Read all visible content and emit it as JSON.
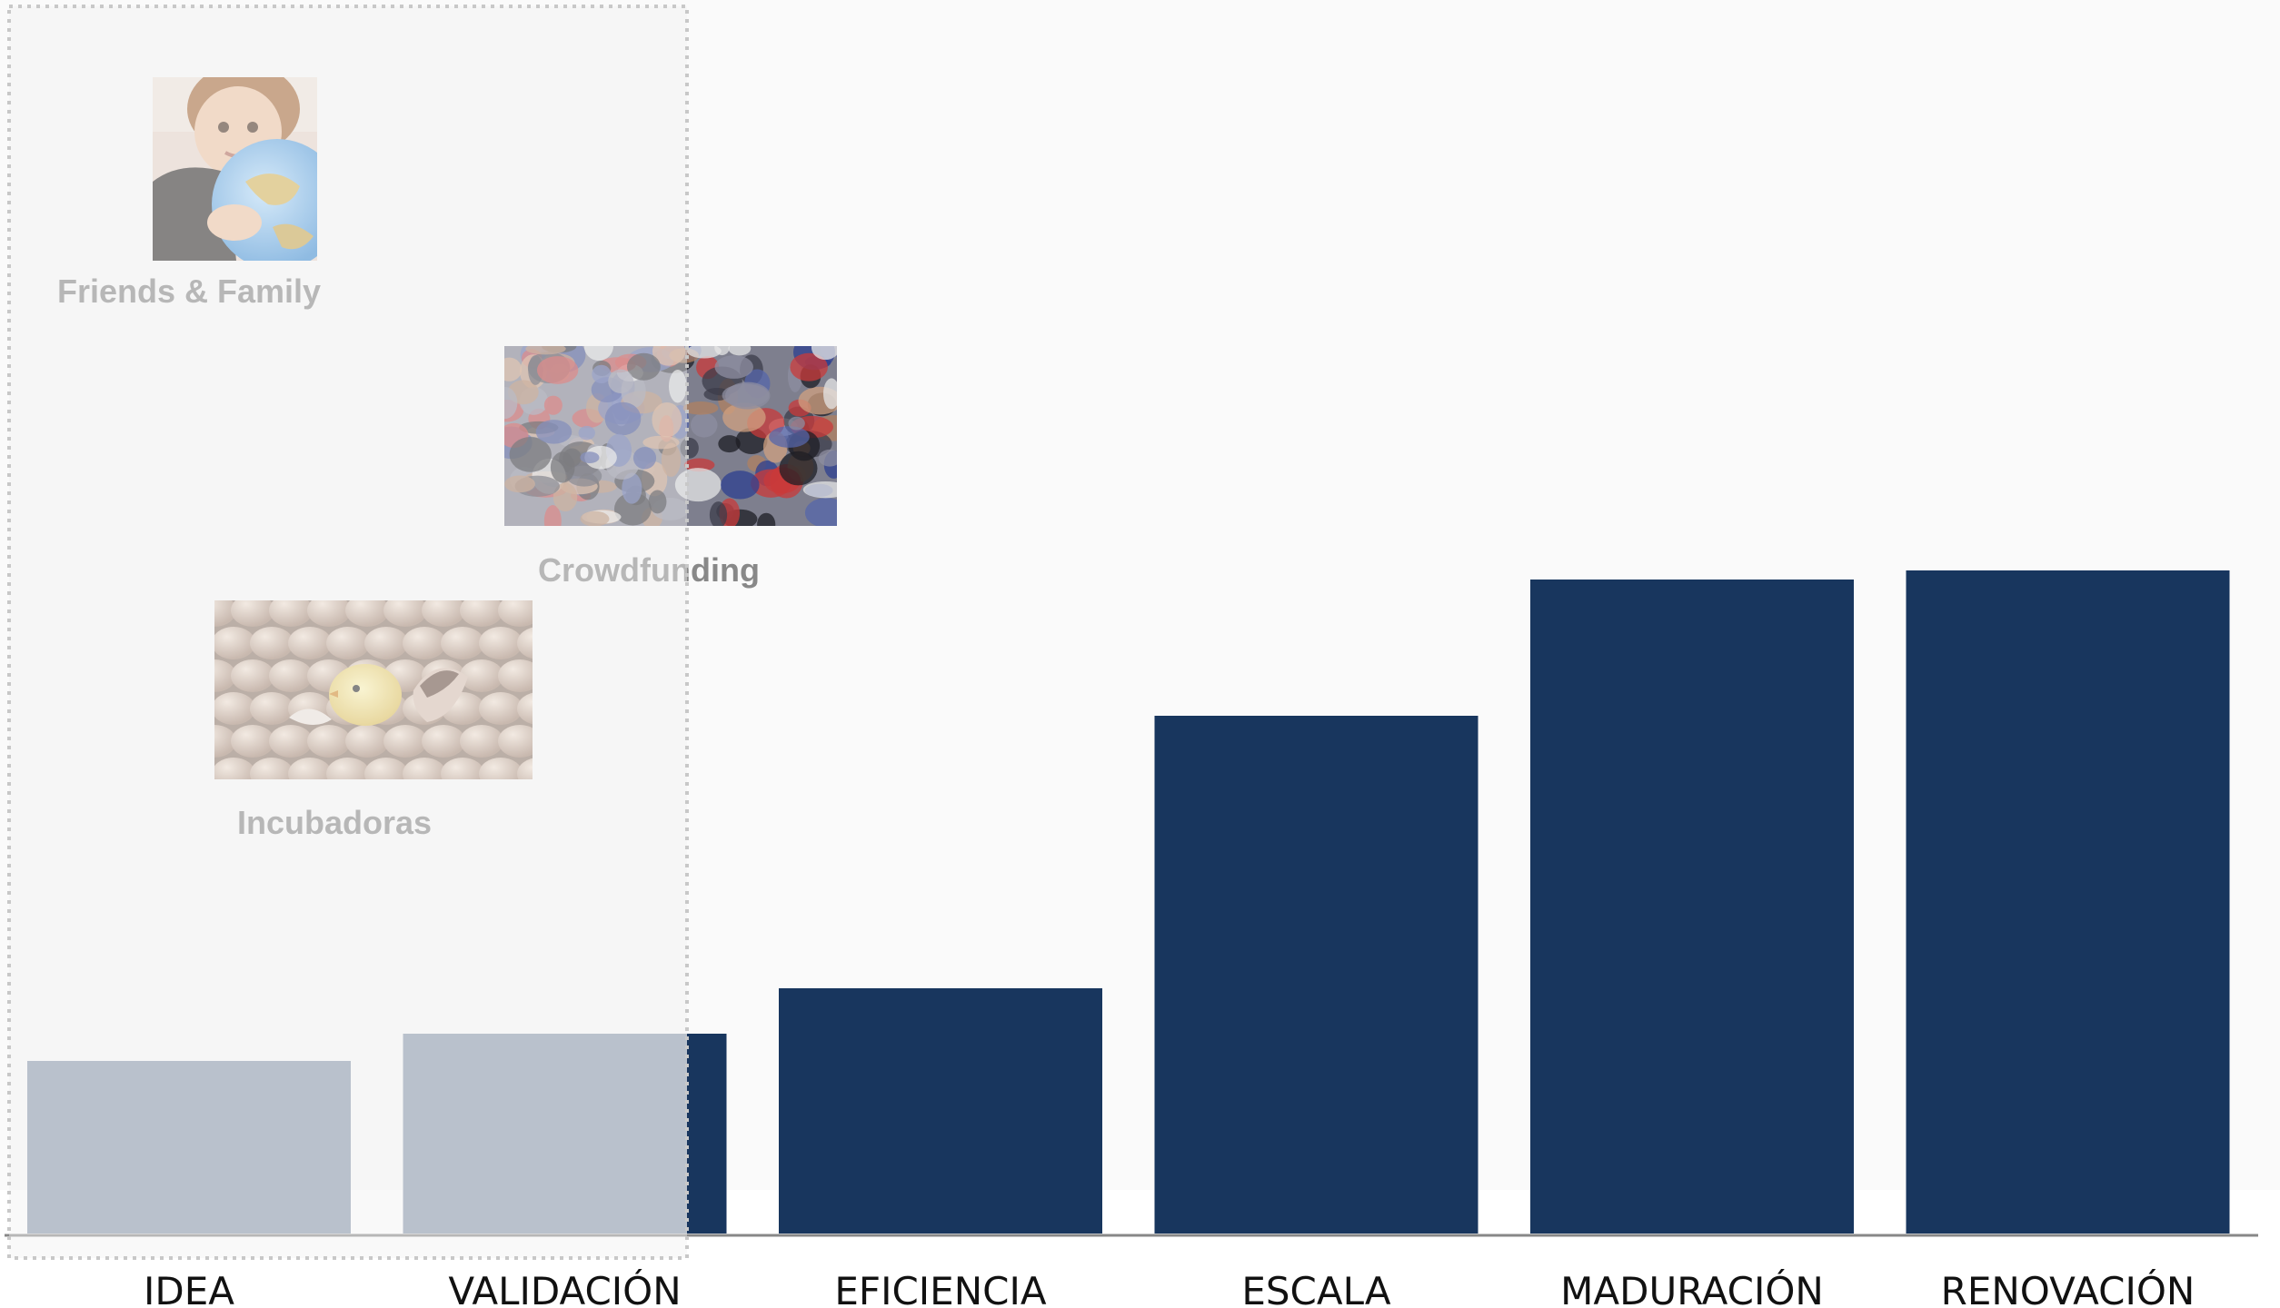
{
  "chart_data": {
    "type": "bar",
    "categories": [
      "IDEA",
      "VALIDACIÓN",
      "EFICIENCIA",
      "ESCALA",
      "MADURACIÓN",
      "RENOVACIÓN"
    ],
    "values": [
      19,
      22,
      27,
      57,
      72,
      73
    ],
    "ylim": [
      0,
      100
    ],
    "grid": false,
    "legend": "none",
    "colors": {
      "bar": "#18365e",
      "bar_highlighted": "#8a9aad",
      "highlight_overlay": "#f2f2f2",
      "axis": "#888888"
    },
    "highlight": {
      "categories": [
        "IDEA",
        "VALIDACIÓN"
      ],
      "note": ""
    }
  },
  "annotations": [
    {
      "id": "friends-family",
      "caption": "Friends & Family",
      "image": "child-hugging-globe-photo"
    },
    {
      "id": "crowdfunding",
      "caption": "Crowdfunding",
      "image": "crowd-of-people-photo"
    },
    {
      "id": "incubadoras",
      "caption": "Incubadoras",
      "image": "chick-hatching-from-eggs-photo"
    }
  ]
}
